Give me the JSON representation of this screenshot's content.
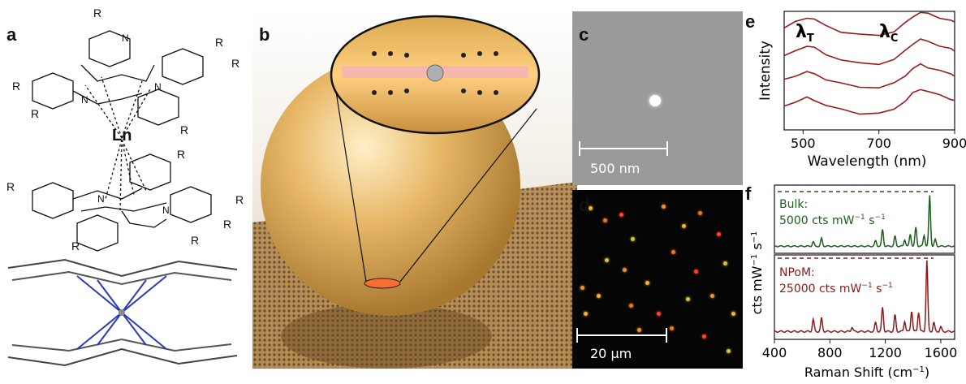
{
  "panels": {
    "a": {
      "label": "a",
      "metal": "Ln",
      "substituent": "R",
      "n_atom": "N"
    },
    "b": {
      "label": "b"
    },
    "c": {
      "label": "c",
      "scalebar": "500 nm"
    },
    "d": {
      "label": "d",
      "scalebar": "20 μm"
    },
    "e": {
      "label": "e",
      "lambda_t": "λ",
      "lambda_t_sub": "T",
      "lambda_c": "λ",
      "lambda_c_sub": "C"
    },
    "f": {
      "label": "f",
      "bulk_title": "Bulk:",
      "bulk_value": "5000 cts mW",
      "npom_title": "NPoM:",
      "npom_value": "25000 cts mW"
    }
  },
  "chart_data": [
    {
      "type": "line",
      "panel": "e",
      "xlabel": "Wavelength (nm)",
      "ylabel": "Intensity",
      "xlim": [
        450,
        900
      ],
      "xticks": [
        500,
        700,
        900
      ],
      "color": "#9b1c1c",
      "series": [
        {
          "x": [
            450,
            480,
            510,
            530,
            560,
            600,
            650,
            700,
            740,
            770,
            790,
            810,
            830,
            860,
            890,
            900
          ],
          "y": [
            0.86,
            0.91,
            0.95,
            0.93,
            0.88,
            0.83,
            0.8,
            0.8,
            0.83,
            0.9,
            0.96,
            0.99,
            0.98,
            0.95,
            0.92,
            0.91
          ]
        },
        {
          "x": [
            450,
            480,
            510,
            530,
            560,
            600,
            650,
            700,
            740,
            770,
            790,
            810,
            830,
            860,
            890,
            900
          ],
          "y": [
            0.62,
            0.67,
            0.71,
            0.69,
            0.64,
            0.59,
            0.56,
            0.56,
            0.59,
            0.67,
            0.73,
            0.76,
            0.75,
            0.71,
            0.68,
            0.67
          ]
        },
        {
          "x": [
            450,
            480,
            510,
            530,
            560,
            600,
            650,
            700,
            740,
            770,
            790,
            810,
            830,
            860,
            890,
            900
          ],
          "y": [
            0.42,
            0.46,
            0.49,
            0.47,
            0.43,
            0.39,
            0.36,
            0.36,
            0.39,
            0.46,
            0.52,
            0.55,
            0.53,
            0.5,
            0.47,
            0.46
          ]
        },
        {
          "x": [
            450,
            480,
            510,
            530,
            560,
            600,
            650,
            700,
            740,
            770,
            790,
            810,
            830,
            860,
            890,
            900
          ],
          "y": [
            0.2,
            0.24,
            0.27,
            0.25,
            0.21,
            0.17,
            0.14,
            0.14,
            0.17,
            0.25,
            0.31,
            0.34,
            0.33,
            0.29,
            0.26,
            0.25
          ]
        }
      ]
    },
    {
      "type": "line",
      "panel": "f",
      "xlabel": "Raman Shift (cm",
      "xlabel_sup": "−1",
      "xlabel_end": ")",
      "ylabel": "cts mW",
      "xlim": [
        400,
        1700
      ],
      "xticks": [
        400,
        800,
        1200,
        1600
      ],
      "series": [
        {
          "name": "Bulk",
          "color": "#1f5c1f",
          "peaks": [
            [
              680,
              0.08
            ],
            [
              740,
              0.14
            ],
            [
              1130,
              0.1
            ],
            [
              1180,
              0.3
            ],
            [
              1270,
              0.18
            ],
            [
              1340,
              0.12
            ],
            [
              1380,
              0.22
            ],
            [
              1420,
              0.34
            ],
            [
              1480,
              0.2
            ],
            [
              1520,
              0.92
            ],
            [
              1560,
              0.12
            ]
          ]
        },
        {
          "name": "NPoM",
          "color": "#8b1a1a",
          "peaks": [
            [
              680,
              0.16
            ],
            [
              740,
              0.18
            ],
            [
              960,
              0.06
            ],
            [
              1130,
              0.12
            ],
            [
              1180,
              0.32
            ],
            [
              1270,
              0.22
            ],
            [
              1340,
              0.14
            ],
            [
              1390,
              0.28
            ],
            [
              1440,
              0.26
            ],
            [
              1500,
              0.95
            ],
            [
              1550,
              0.12
            ],
            [
              1600,
              0.06
            ]
          ]
        }
      ]
    }
  ]
}
